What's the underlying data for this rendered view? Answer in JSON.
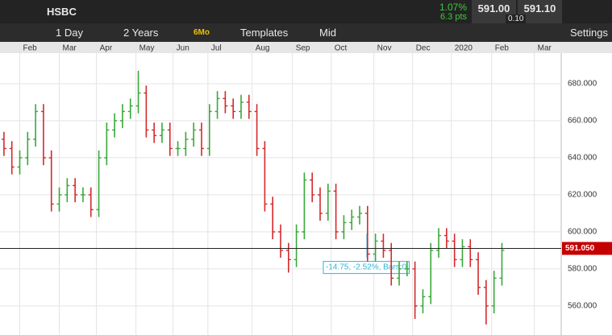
{
  "header": {
    "symbol": "HSBC",
    "change_pct": "1.07%",
    "change_pts": "6.3 pts",
    "bid": "591.00",
    "ask": "591.10",
    "spread": "0.10"
  },
  "toolbar": {
    "interval": "1 Day",
    "range": "2 Years",
    "preset": "6Mo",
    "templates": "Templates",
    "price_mode": "Mid",
    "settings": "Settings"
  },
  "chart_data": {
    "type": "ohlc",
    "up_color": "#3aa83a",
    "down_color": "#d42a2a",
    "open": [
      650,
      645,
      635,
      640,
      650,
      665,
      640,
      615,
      620,
      625,
      620,
      620,
      612,
      640,
      655,
      660,
      665,
      668,
      675,
      655,
      652,
      655,
      645,
      645,
      650,
      655,
      645,
      665,
      672,
      668,
      665,
      670,
      665,
      645,
      615,
      600,
      590,
      585,
      600,
      628,
      620,
      610,
      622,
      600,
      605,
      608,
      610,
      588,
      595,
      590,
      575,
      580,
      580,
      560,
      565,
      590,
      598,
      595,
      585,
      592,
      585,
      570,
      560,
      575
    ],
    "high": [
      654,
      649,
      644,
      654,
      669,
      669,
      644,
      624,
      629,
      629,
      624,
      624,
      644,
      659,
      664,
      669,
      672,
      687,
      679,
      659,
      659,
      659,
      649,
      654,
      659,
      659,
      669,
      676,
      676,
      672,
      674,
      674,
      669,
      649,
      619,
      604,
      594,
      604,
      632,
      632,
      624,
      626,
      626,
      609,
      612,
      614,
      614,
      599,
      599,
      594,
      584,
      584,
      584,
      569,
      594,
      602,
      602,
      599,
      596,
      596,
      589,
      574,
      579,
      594
    ],
    "low": [
      641,
      631,
      631,
      636,
      646,
      636,
      611,
      611,
      616,
      616,
      616,
      608,
      608,
      636,
      651,
      656,
      661,
      664,
      651,
      648,
      648,
      641,
      641,
      641,
      646,
      641,
      641,
      661,
      664,
      661,
      661,
      661,
      641,
      611,
      596,
      586,
      578,
      581,
      596,
      616,
      606,
      606,
      596,
      596,
      601,
      604,
      584,
      584,
      586,
      571,
      571,
      576,
      553,
      556,
      561,
      586,
      591,
      581,
      581,
      581,
      566,
      550,
      556,
      571
    ],
    "close": [
      645,
      635,
      640,
      650,
      665,
      640,
      615,
      620,
      625,
      620,
      620,
      612,
      640,
      655,
      660,
      665,
      668,
      675,
      655,
      652,
      655,
      645,
      645,
      650,
      655,
      645,
      665,
      672,
      668,
      665,
      670,
      665,
      645,
      615,
      600,
      590,
      585,
      600,
      628,
      620,
      610,
      622,
      600,
      605,
      608,
      610,
      588,
      595,
      590,
      575,
      580,
      580,
      560,
      565,
      590,
      598,
      595,
      585,
      592,
      585,
      570,
      560,
      575,
      590
    ],
    "xlim": [
      -0.5,
      70.5
    ],
    "xticks": [
      {
        "value": 2,
        "label": "Feb"
      },
      {
        "value": 7,
        "label": "Mar"
      },
      {
        "value": 11.7,
        "label": "Apr"
      },
      {
        "value": 16.7,
        "label": "May"
      },
      {
        "value": 21.4,
        "label": "Jun"
      },
      {
        "value": 25.8,
        "label": "Jul"
      },
      {
        "value": 31.4,
        "label": "Aug"
      },
      {
        "value": 36.5,
        "label": "Sep"
      },
      {
        "value": 41.4,
        "label": "Oct"
      },
      {
        "value": 46.8,
        "label": "Nov"
      },
      {
        "value": 51.7,
        "label": "Dec"
      },
      {
        "value": 56.6,
        "label": "2020"
      },
      {
        "value": 61.7,
        "label": "Feb"
      },
      {
        "value": 67.1,
        "label": "Mar"
      }
    ],
    "ylim": [
      544.3,
      696.5
    ],
    "yticks": [
      {
        "value": 560,
        "label": "560.000"
      },
      {
        "value": 580,
        "label": "580.000"
      },
      {
        "value": 600,
        "label": "600.000"
      },
      {
        "value": 620,
        "label": "620.000"
      },
      {
        "value": 640,
        "label": "640.000"
      },
      {
        "value": 660,
        "label": "660.000"
      },
      {
        "value": 680,
        "label": "680.000"
      }
    ],
    "grid": true,
    "price_line": {
      "value": 591.05,
      "label": "591.050",
      "color": "#c40000"
    },
    "measure_label": "-14.75, -2.52%, Bars:0"
  }
}
